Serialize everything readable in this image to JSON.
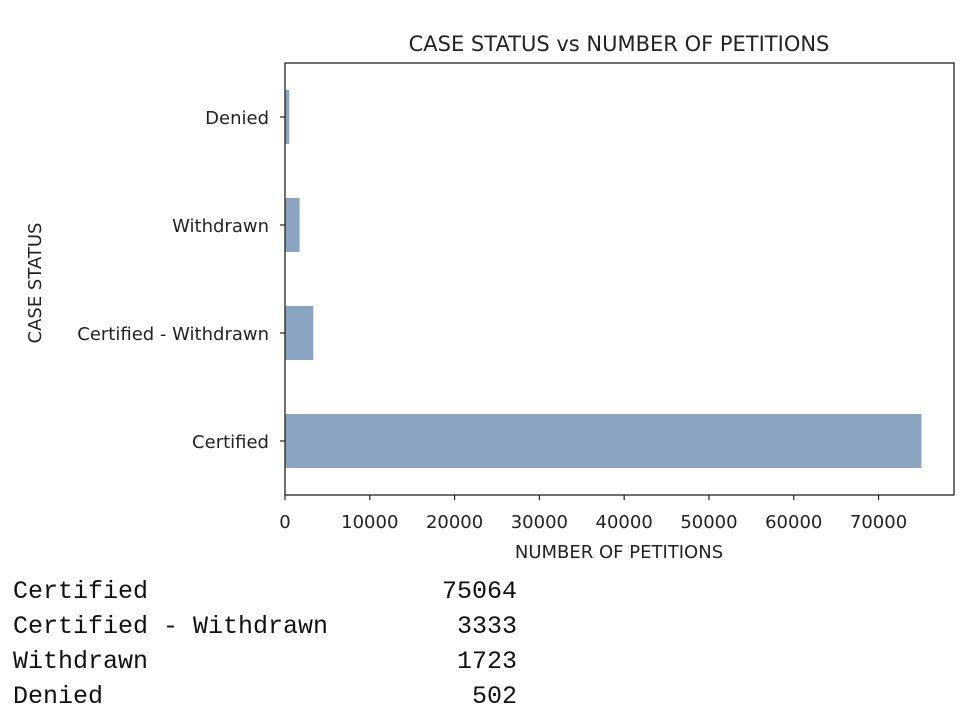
{
  "chart_data": {
    "type": "bar",
    "orientation": "horizontal",
    "title": "CASE STATUS vs NUMBER OF PETITIONS",
    "xlabel": "NUMBER OF PETITIONS",
    "ylabel": "CASE STATUS",
    "categories": [
      "Certified",
      "Certified - Withdrawn",
      "Withdrawn",
      "Denied"
    ],
    "values": [
      75064,
      3333,
      1723,
      502
    ],
    "xlim": [
      0,
      78900
    ],
    "xticks": [
      0,
      10000,
      20000,
      30000,
      40000,
      50000,
      60000,
      70000
    ],
    "grid": false,
    "bar_color": "#8aa4c2",
    "bar_edge_color": "#4c5f82"
  },
  "output_table": {
    "rows": [
      {
        "status": "Certified",
        "count": "75064"
      },
      {
        "status": "Certified - Withdrawn",
        "count": "3333"
      },
      {
        "status": "Withdrawn",
        "count": "1723"
      },
      {
        "status": "Denied",
        "count": "502"
      }
    ]
  }
}
